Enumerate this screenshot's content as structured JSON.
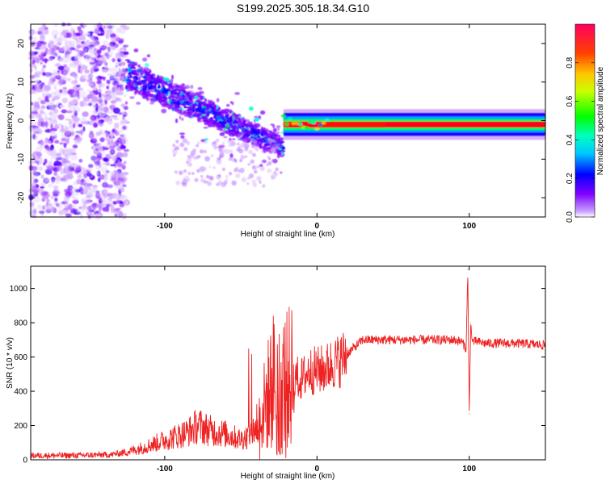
{
  "title": "S199.2025.305.18.34.G10",
  "chart_data": [
    {
      "type": "heatmap",
      "xlabel": "Height of straight line (km)",
      "ylabel": "Frequency (Hz)",
      "xlim": [
        -188,
        150
      ],
      "ylim": [
        -25,
        25
      ],
      "x_ticks": [
        -100,
        0,
        100
      ],
      "x_tick_labels": [
        "-100",
        "0",
        "100"
      ],
      "y_ticks": [
        -20,
        -10,
        0,
        10,
        20
      ],
      "y_tick_labels": [
        "-20",
        "-10",
        "0",
        "10",
        "20"
      ],
      "colorbar": {
        "label": "Normalized spectral amplitude",
        "range": [
          0,
          1
        ],
        "ticks": [
          0.0,
          0.2,
          0.4,
          0.6,
          0.8
        ],
        "tick_labels": [
          "0.0",
          "0.2",
          "0.4",
          "0.6",
          "0.8"
        ],
        "colormap": [
          "#ffffff",
          "#8000ff",
          "#0000ff",
          "#00ffff",
          "#00ff00",
          "#ffff00",
          "#ff8000",
          "#ff0000",
          "#ff0080"
        ]
      },
      "regions": [
        {
          "name": "noise",
          "x": [
            -188,
            -125
          ],
          "freq_center": 0,
          "freq_spread": 25,
          "amplitude": 0.1
        },
        {
          "name": "descending-trace",
          "x": [
            -125,
            -22
          ],
          "freq_start": 12,
          "freq_end": -7,
          "amplitude": 0.3
        },
        {
          "name": "stable-line",
          "x": [
            -22,
            150
          ],
          "freq_center": -1,
          "amplitude": 0.95
        }
      ],
      "grid": false
    },
    {
      "type": "line",
      "xlabel": "Height of straight line (km)",
      "ylabel": "SNR (10 * v/v)",
      "xlim": [
        -188,
        150
      ],
      "ylim": [
        0,
        1130
      ],
      "x_ticks": [
        -100,
        0,
        100
      ],
      "x_tick_labels": [
        "-100",
        "0",
        "100"
      ],
      "y_ticks": [
        0,
        200,
        400,
        600,
        800,
        1000
      ],
      "y_tick_labels": [
        "0",
        "200",
        "400",
        "600",
        "800",
        "1000"
      ],
      "series": [
        {
          "color": "#ee2222",
          "x": [
            -188,
            -160,
            -135,
            -125,
            -115,
            -105,
            -95,
            -85,
            -78,
            -70,
            -60,
            -50,
            -45,
            -40,
            -35,
            -32,
            -28,
            -25,
            -20,
            -15,
            -10,
            -5,
            0,
            5,
            10,
            15,
            20,
            25,
            30,
            40,
            50,
            60,
            70,
            80,
            90,
            95,
            98,
            99,
            100,
            101,
            102,
            105,
            110,
            120,
            130,
            140,
            150
          ],
          "y": [
            25,
            25,
            30,
            45,
            70,
            100,
            130,
            160,
            200,
            170,
            150,
            120,
            140,
            190,
            300,
            380,
            480,
            420,
            470,
            480,
            470,
            520,
            520,
            530,
            560,
            580,
            620,
            660,
            700,
            700,
            700,
            700,
            700,
            700,
            700,
            690,
            650,
            1110,
            270,
            800,
            690,
            690,
            680,
            680,
            680,
            675,
            670
          ]
        }
      ],
      "grid": false
    }
  ]
}
